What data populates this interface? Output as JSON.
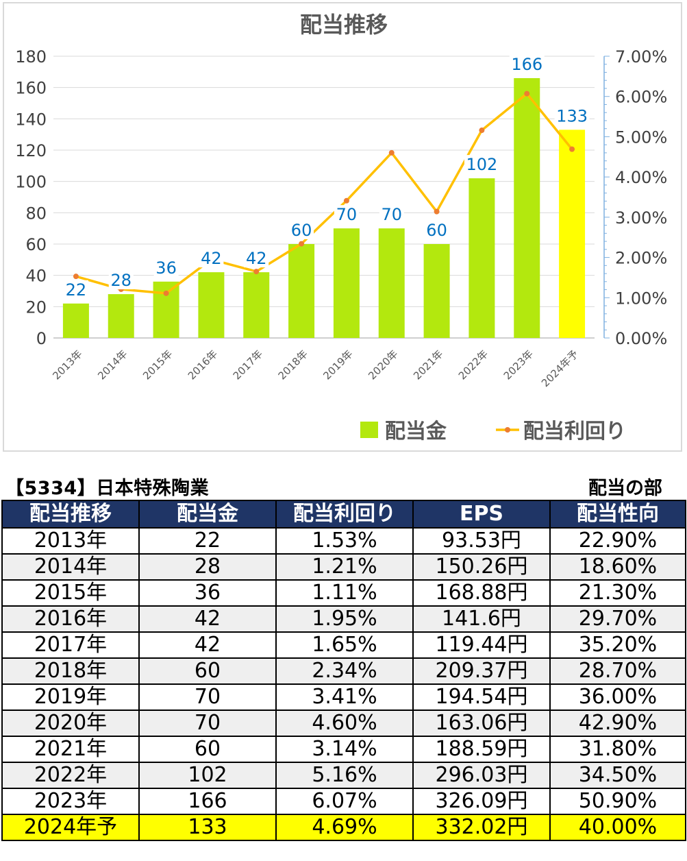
{
  "chart_data": {
    "type": "bar",
    "title": "配当推移",
    "categories": [
      "2013年",
      "2014年",
      "2015年",
      "2016年",
      "2017年",
      "2018年",
      "2019年",
      "2020年",
      "2021年",
      "2022年",
      "2023年",
      "2024年予"
    ],
    "series": [
      {
        "name": "配当金",
        "type": "bar",
        "axis": "left",
        "values": [
          22,
          28,
          36,
          42,
          42,
          60,
          70,
          70,
          60,
          102,
          166,
          133
        ],
        "color": "#b3e80e",
        "highlight_color": "#ffff00",
        "highlight_index": 11
      },
      {
        "name": "配当利回り",
        "type": "line",
        "axis": "right",
        "values": [
          1.53,
          1.21,
          1.11,
          1.95,
          1.65,
          2.34,
          3.41,
          4.6,
          3.14,
          5.16,
          6.07,
          4.69
        ],
        "color": "#ffc000",
        "marker_color": "#ed7d31"
      }
    ],
    "left_axis": {
      "ylim": [
        0,
        180
      ],
      "ticks": [
        "0",
        "20",
        "40",
        "60",
        "80",
        "100",
        "120",
        "140",
        "160",
        "180"
      ]
    },
    "right_axis": {
      "ylim": [
        0,
        7
      ],
      "ticks": [
        "0.00%",
        "1.00%",
        "2.00%",
        "3.00%",
        "4.00%",
        "5.00%",
        "6.00%",
        "7.00%"
      ]
    },
    "data_labels": [
      "22",
      "28",
      "36",
      "42",
      "42",
      "60",
      "70",
      "70",
      "60",
      "102",
      "166",
      "133"
    ],
    "data_label_color": "#0070c0",
    "grid": true,
    "legend_position": "bottom-right"
  },
  "table": {
    "code_title": "【5334】日本特殊陶業",
    "section_title": "配当の部",
    "headers": [
      "配当推移",
      "配当金",
      "配当利回り",
      "EPS",
      "配当性向"
    ],
    "rows": [
      [
        "2013年",
        "22",
        "1.53%",
        "93.53円",
        "22.90%"
      ],
      [
        "2014年",
        "28",
        "1.21%",
        "150.26円",
        "18.60%"
      ],
      [
        "2015年",
        "36",
        "1.11%",
        "168.88円",
        "21.30%"
      ],
      [
        "2016年",
        "42",
        "1.95%",
        "141.6円",
        "29.70%"
      ],
      [
        "2017年",
        "42",
        "1.65%",
        "119.44円",
        "35.20%"
      ],
      [
        "2018年",
        "60",
        "2.34%",
        "209.37円",
        "28.70%"
      ],
      [
        "2019年",
        "70",
        "3.41%",
        "194.54円",
        "36.00%"
      ],
      [
        "2020年",
        "70",
        "4.60%",
        "163.06円",
        "42.90%"
      ],
      [
        "2021年",
        "60",
        "3.14%",
        "188.59円",
        "31.80%"
      ],
      [
        "2022年",
        "102",
        "5.16%",
        "296.03円",
        "34.50%"
      ],
      [
        "2023年",
        "166",
        "6.07%",
        "326.09円",
        "50.90%"
      ],
      [
        "2024年予",
        "133",
        "4.69%",
        "332.02円",
        "40.00%"
      ]
    ],
    "header_color": "#1f3566",
    "forecast_row_color": "#ffff00"
  }
}
